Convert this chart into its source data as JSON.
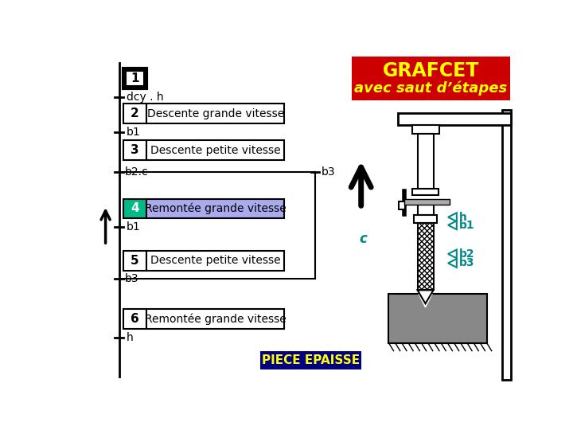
{
  "title": "GRAFCET",
  "subtitle": "avec saut d’étapes",
  "title_bg": "#cc0000",
  "title_fg": "#ffff00",
  "piece_label": "PIECE EPAISSE",
  "piece_bg": "#000080",
  "piece_fg": "#ffff00",
  "step4_num_bg": "#00bb88",
  "step4_action_bg": "#aaaaee",
  "sensor_color": "#008888",
  "c_color": "#008888",
  "bg_color": "#ffffff"
}
